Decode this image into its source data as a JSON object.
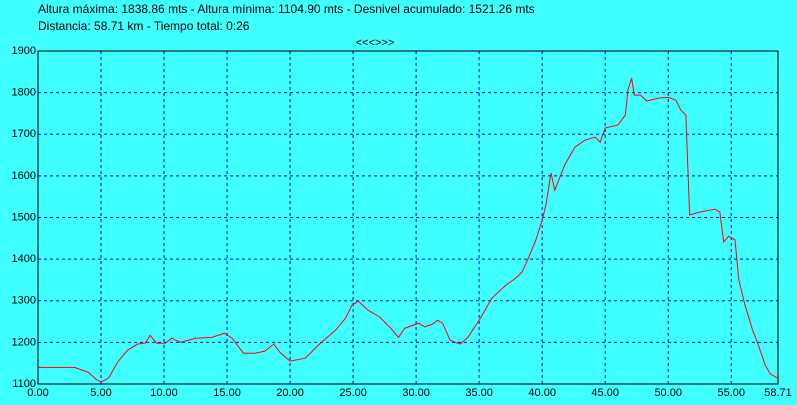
{
  "chart_data": {
    "type": "line",
    "title": "Altura máxima: 1838.86 mts - Altura mínima: 1104.90 mts - Desnivel acumulado: 1521.26 mts",
    "subtitle": "Distancia: 58.71 km - Tiempo total: 0:26",
    "annotations": [
      "<<<>>>"
    ],
    "x": [
      0,
      2.9,
      4.0,
      4.7,
      5.0,
      5.6,
      6.3,
      7.1,
      7.9,
      8.5,
      8.9,
      9.4,
      10.1,
      10.6,
      11.3,
      12.5,
      13.8,
      14.8,
      15.4,
      16.3,
      17.2,
      18.0,
      18.7,
      19.2,
      20.0,
      21.2,
      22.4,
      23.6,
      24.4,
      24.9,
      25.4,
      26.2,
      27.1,
      27.9,
      28.6,
      29.1,
      30.2,
      30.7,
      31.3,
      31.7,
      32.1,
      32.7,
      33.5,
      34.1,
      35.1,
      36.0,
      37.1,
      37.9,
      38.4,
      38.9,
      39.5,
      40.0,
      40.3,
      40.7,
      41.0,
      41.8,
      42.6,
      43.4,
      44.2,
      44.6,
      45.0,
      46.0,
      46.6,
      46.8,
      47.1,
      47.3,
      47.8,
      48.3,
      49.3,
      50.0,
      50.6,
      51.0,
      51.4,
      51.7,
      52.5,
      53.7,
      54.1,
      54.4,
      54.8,
      55.3,
      55.6,
      56.1,
      56.7,
      57.1,
      57.7,
      58.1,
      58.71
    ],
    "series": [
      {
        "name": "Altura",
        "color": "#ff0000",
        "values": [
          1140,
          1140,
          1128,
          1109,
          1105,
          1114,
          1152,
          1181,
          1196,
          1198,
          1217,
          1198,
          1198,
          1210,
          1200,
          1210,
          1212,
          1222,
          1210,
          1174,
          1174,
          1179,
          1196,
          1176,
          1155,
          1162,
          1198,
          1229,
          1258,
          1289,
          1299,
          1277,
          1261,
          1237,
          1212,
          1234,
          1246,
          1237,
          1244,
          1253,
          1246,
          1205,
          1196,
          1212,
          1258,
          1306,
          1337,
          1354,
          1369,
          1402,
          1446,
          1494,
          1530,
          1607,
          1566,
          1627,
          1669,
          1686,
          1693,
          1681,
          1715,
          1722,
          1746,
          1806,
          1835,
          1794,
          1794,
          1780,
          1787,
          1789,
          1782,
          1758,
          1746,
          1506,
          1513,
          1520,
          1513,
          1441,
          1455,
          1446,
          1350,
          1289,
          1229,
          1198,
          1145,
          1124,
          1114
        ]
      }
    ],
    "xlim": [
      0,
      58.71
    ],
    "xticks": [
      {
        "value": 0,
        "label": "0.00"
      },
      {
        "value": 5,
        "label": "5.00"
      },
      {
        "value": 10,
        "label": "10.00"
      },
      {
        "value": 15,
        "label": "15.00"
      },
      {
        "value": 20,
        "label": "20.00"
      },
      {
        "value": 25,
        "label": "25.00"
      },
      {
        "value": 30,
        "label": "30.00"
      },
      {
        "value": 35,
        "label": "35.00"
      },
      {
        "value": 40,
        "label": "40.00"
      },
      {
        "value": 45,
        "label": "45.00"
      },
      {
        "value": 50,
        "label": "50.00"
      },
      {
        "value": 55,
        "label": "55.00"
      },
      {
        "value": 58.71,
        "label": "58.71"
      }
    ],
    "ylim": [
      1100,
      1900
    ],
    "yticks": [
      1100,
      1200,
      1300,
      1400,
      1500,
      1600,
      1700,
      1800,
      1900
    ],
    "grid": true,
    "grid_color": "#0000ff",
    "background": "#40ffff"
  }
}
